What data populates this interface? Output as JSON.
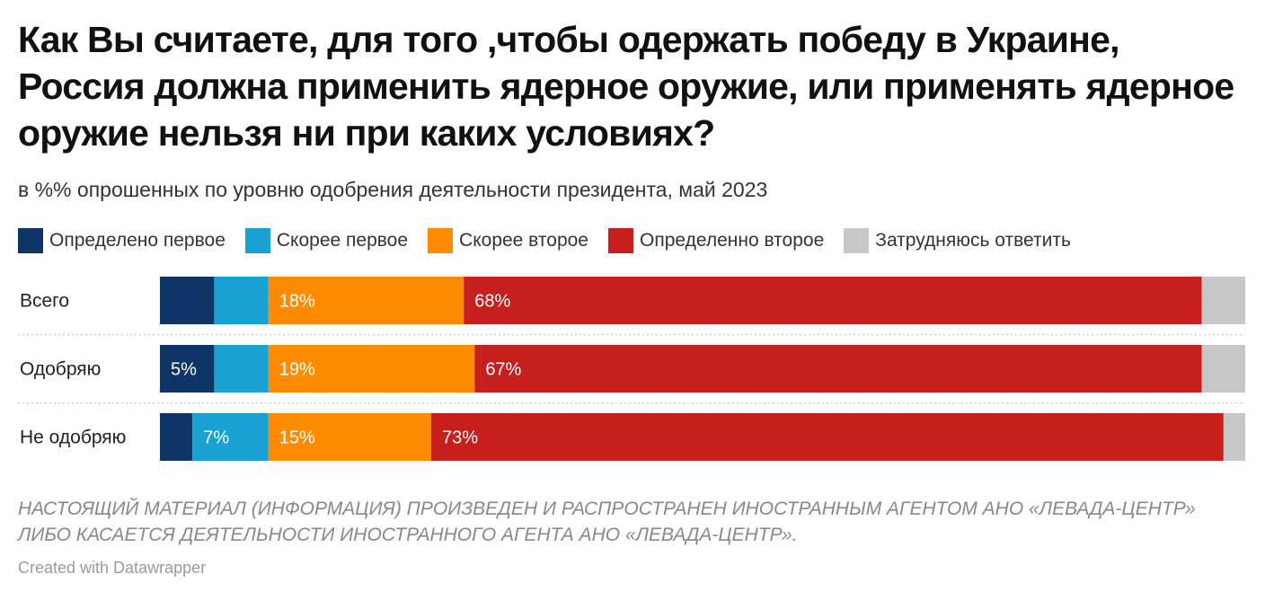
{
  "chart_data": {
    "type": "bar",
    "orientation": "horizontal",
    "stacked": true,
    "title": "Как Вы считаете, для того ,чтобы одержать победу в Украине, Россия должна применить ядерное оружие, или применять ядерное оружие нельзя ни при каких условиях?",
    "subtitle": "в %% опрошенных по уровню одобрения деятельности президента, май 2023",
    "categories": [
      "Всего",
      "Одобряю",
      "Не одобряю"
    ],
    "series": [
      {
        "name": "Определено первое",
        "color": "#0f3566",
        "values": [
          5,
          5,
          3
        ]
      },
      {
        "name": "Скорее первое",
        "color": "#1aa1d3",
        "values": [
          5,
          5,
          7
        ]
      },
      {
        "name": "Скорее второе",
        "color": "#ff8c00",
        "values": [
          18,
          19,
          15
        ]
      },
      {
        "name": "Определенно второе",
        "color": "#c71e1e",
        "values": [
          68,
          67,
          73
        ]
      },
      {
        "name": "Затрудняюсь ответить",
        "color": "#c7c7c7",
        "values": [
          4,
          4,
          2
        ]
      }
    ],
    "value_labels": [
      [
        "",
        "",
        "18%",
        "68%",
        ""
      ],
      [
        "5%",
        "",
        "19%",
        "67%",
        ""
      ],
      [
        "",
        "7%",
        "15%",
        "73%",
        ""
      ]
    ],
    "legend_position": "top",
    "notes": "НАСТОЯЩИЙ МАТЕРИАЛ (ИНФОРМАЦИЯ) ПРОИЗВЕДЕН И РАСПРОСТРАНЕН ИНОСТРАННЫМ АГЕНТОМ АНО «ЛЕВАДА-ЦЕНТР» ЛИБО КАСАЕТСЯ ДЕЯТЕЛЬНОСТИ ИНОСТРАННОГО АГЕНТА АНО «ЛЕВАДА-ЦЕНТР».",
    "credit": "Created with Datawrapper"
  }
}
